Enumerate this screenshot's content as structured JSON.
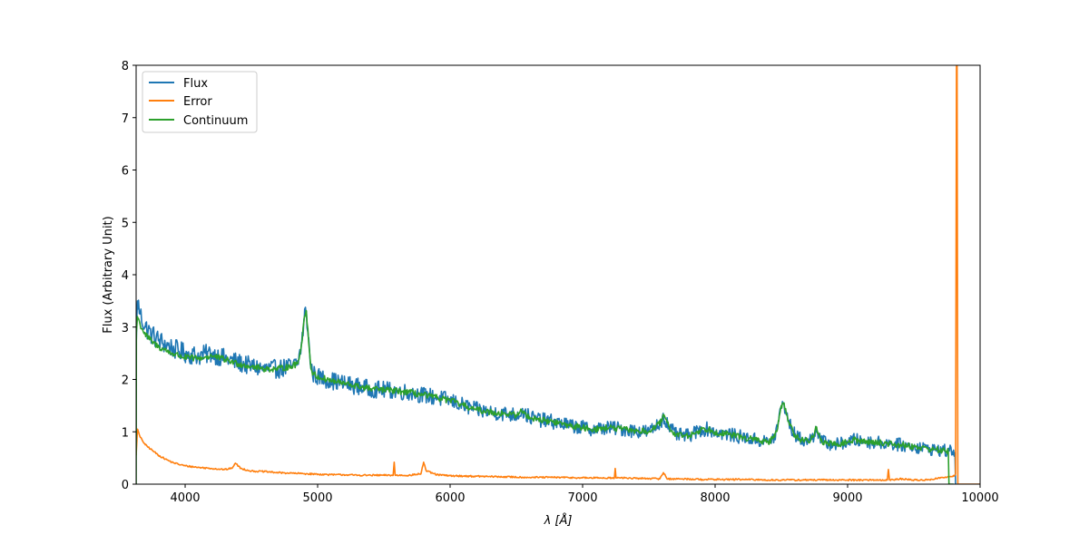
{
  "chart_data": {
    "type": "line",
    "title": "",
    "xlabel": "λ [Å]",
    "ylabel": "Flux (Arbitrary Unit)",
    "xlim": [
      3630,
      10000
    ],
    "ylim": [
      0,
      8
    ],
    "grid": false,
    "legend_position": "top-left",
    "xticks": [
      4000,
      5000,
      6000,
      7000,
      8000,
      9000,
      10000
    ],
    "xtick_labels": [
      "4000",
      "5000",
      "6000",
      "7000",
      "8000",
      "9000",
      "10000"
    ],
    "yticks": [
      0,
      1,
      2,
      3,
      4,
      5,
      6,
      7,
      8
    ],
    "ytick_labels": [
      "0",
      "1",
      "2",
      "3",
      "4",
      "5",
      "6",
      "7",
      "8"
    ],
    "series": [
      {
        "name": "Flux",
        "color": "#1f77b4",
        "noise": 0.22,
        "x": [
          3630,
          3640,
          3660,
          3700,
          3750,
          3800,
          3900,
          4000,
          4100,
          4200,
          4300,
          4400,
          4500,
          4600,
          4700,
          4800,
          4850,
          4880,
          4900,
          4915,
          4930,
          4950,
          4970,
          5000,
          5100,
          5200,
          5300,
          5400,
          5500,
          5600,
          5700,
          5800,
          5900,
          6000,
          6100,
          6200,
          6300,
          6400,
          6500,
          6540,
          6560,
          6600,
          6700,
          6800,
          6900,
          7000,
          7100,
          7200,
          7300,
          7400,
          7500,
          7580,
          7610,
          7650,
          7700,
          7800,
          7900,
          7950,
          8000,
          8100,
          8200,
          8300,
          8400,
          8450,
          8480,
          8500,
          8520,
          8550,
          8600,
          8650,
          8700,
          8740,
          8760,
          8780,
          8800,
          8900,
          9000,
          9050,
          9100,
          9200,
          9300,
          9400,
          9500,
          9600,
          9700,
          9790,
          9800,
          9810,
          9815
        ],
        "y": [
          2.6,
          3.5,
          3.25,
          3.0,
          2.85,
          2.75,
          2.6,
          2.5,
          2.45,
          2.5,
          2.4,
          2.32,
          2.25,
          2.2,
          2.2,
          2.25,
          2.3,
          2.7,
          3.2,
          3.3,
          2.8,
          2.2,
          2.1,
          2.05,
          1.98,
          1.92,
          1.87,
          1.82,
          1.8,
          1.78,
          1.75,
          1.7,
          1.65,
          1.6,
          1.5,
          1.42,
          1.38,
          1.35,
          1.32,
          1.4,
          1.35,
          1.28,
          1.22,
          1.18,
          1.12,
          1.08,
          1.05,
          1.08,
          1.05,
          1.02,
          1.0,
          1.15,
          1.3,
          1.1,
          0.95,
          0.92,
          1.05,
          1.05,
          1.0,
          0.95,
          0.9,
          0.85,
          0.8,
          0.9,
          1.2,
          1.5,
          1.55,
          1.2,
          0.95,
          0.85,
          0.82,
          0.9,
          1.1,
          0.95,
          0.82,
          0.75,
          0.8,
          0.85,
          0.82,
          0.8,
          0.78,
          0.75,
          0.72,
          0.68,
          0.65,
          0.62,
          0.65,
          0.6,
          0.0
        ]
      },
      {
        "name": "Error",
        "color": "#ff7f0e",
        "noise": 0.015,
        "x": [
          3630,
          3640,
          3660,
          3700,
          3750,
          3800,
          3850,
          3900,
          3950,
          4000,
          4100,
          4200,
          4300,
          4350,
          4380,
          4420,
          4500,
          4600,
          4700,
          4800,
          4900,
          5000,
          5100,
          5200,
          5300,
          5400,
          5500,
          5570,
          5578,
          5585,
          5700,
          5780,
          5800,
          5820,
          5900,
          6000,
          6200,
          6400,
          6600,
          6800,
          7000,
          7200,
          7240,
          7246,
          7252,
          7300,
          7400,
          7500,
          7580,
          7610,
          7640,
          7700,
          7800,
          7900,
          8000,
          8200,
          8400,
          8500,
          8600,
          8800,
          9000,
          9200,
          9300,
          9308,
          9316,
          9400,
          9500,
          9600,
          9700,
          9800,
          9815,
          9822,
          9826,
          9832,
          9840,
          10000
        ],
        "y": [
          0.55,
          1.05,
          0.9,
          0.75,
          0.65,
          0.55,
          0.48,
          0.42,
          0.38,
          0.35,
          0.32,
          0.3,
          0.28,
          0.3,
          0.4,
          0.3,
          0.25,
          0.24,
          0.22,
          0.21,
          0.2,
          0.19,
          0.18,
          0.18,
          0.17,
          0.17,
          0.17,
          0.17,
          0.42,
          0.17,
          0.17,
          0.2,
          0.42,
          0.25,
          0.18,
          0.16,
          0.15,
          0.14,
          0.13,
          0.13,
          0.12,
          0.12,
          0.12,
          0.3,
          0.12,
          0.12,
          0.11,
          0.11,
          0.1,
          0.22,
          0.1,
          0.1,
          0.1,
          0.09,
          0.09,
          0.09,
          0.08,
          0.08,
          0.08,
          0.08,
          0.08,
          0.08,
          0.08,
          0.28,
          0.08,
          0.1,
          0.08,
          0.08,
          0.12,
          0.15,
          0.2,
          8.2,
          8.2,
          0.0,
          0.0,
          0.0
        ]
      },
      {
        "name": "Continuum",
        "color": "#2ca02c",
        "noise": 0.06,
        "x": [
          3630,
          3632,
          3640,
          3660,
          3700,
          3750,
          3800,
          3900,
          4000,
          4100,
          4200,
          4300,
          4400,
          4500,
          4600,
          4700,
          4800,
          4850,
          4880,
          4900,
          4915,
          4930,
          4950,
          4970,
          5000,
          5100,
          5200,
          5300,
          5400,
          5500,
          5600,
          5700,
          5800,
          5900,
          6000,
          6100,
          6200,
          6300,
          6400,
          6500,
          6540,
          6560,
          6600,
          6700,
          6800,
          6900,
          7000,
          7100,
          7200,
          7300,
          7400,
          7500,
          7580,
          7610,
          7650,
          7700,
          7800,
          7900,
          7950,
          8000,
          8100,
          8200,
          8300,
          8400,
          8450,
          8480,
          8500,
          8520,
          8550,
          8600,
          8650,
          8700,
          8740,
          8760,
          8780,
          8800,
          8900,
          9000,
          9050,
          9100,
          9200,
          9300,
          9400,
          9500,
          9600,
          9700,
          9760,
          9765,
          9780,
          9800
        ],
        "y": [
          0.0,
          2.9,
          3.2,
          3.05,
          2.85,
          2.72,
          2.62,
          2.5,
          2.42,
          2.4,
          2.45,
          2.38,
          2.3,
          2.25,
          2.2,
          2.2,
          2.25,
          2.3,
          2.7,
          3.2,
          3.3,
          2.8,
          2.2,
          2.1,
          2.05,
          1.98,
          1.92,
          1.87,
          1.82,
          1.8,
          1.78,
          1.75,
          1.7,
          1.65,
          1.6,
          1.5,
          1.42,
          1.38,
          1.35,
          1.32,
          1.4,
          1.35,
          1.28,
          1.22,
          1.18,
          1.12,
          1.08,
          1.05,
          1.08,
          1.05,
          1.02,
          1.0,
          1.15,
          1.3,
          1.1,
          0.95,
          0.92,
          1.05,
          1.05,
          1.0,
          0.95,
          0.9,
          0.85,
          0.8,
          0.9,
          1.2,
          1.5,
          1.55,
          1.2,
          0.95,
          0.85,
          0.82,
          0.9,
          1.1,
          0.95,
          0.82,
          0.75,
          0.8,
          0.85,
          0.82,
          0.8,
          0.78,
          0.75,
          0.72,
          0.68,
          0.65,
          0.62,
          0.0,
          0.0,
          0.0
        ]
      }
    ]
  }
}
